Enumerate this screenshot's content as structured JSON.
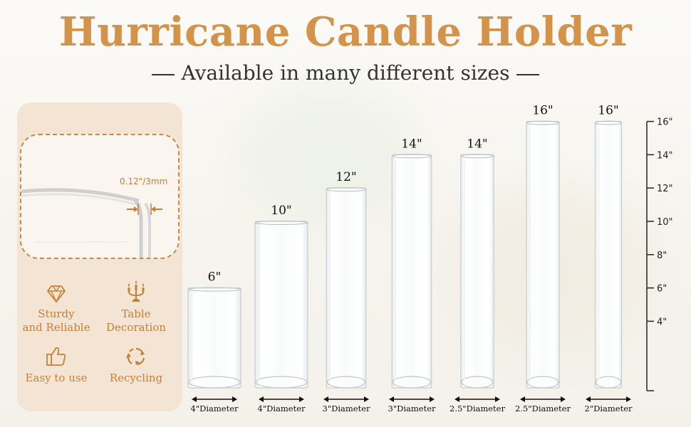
{
  "title": "Hurricane Candle Holder",
  "subtitle": "Available in many different sizes",
  "thickness": "0.12\"/3mm",
  "features": [
    {
      "label_1": "Sturdy",
      "label_2": "and Reliable",
      "icon": "diamond-icon"
    },
    {
      "label_1": "Table",
      "label_2": "Decoration",
      "icon": "candelabra-icon"
    },
    {
      "label_1": "Easy to use",
      "label_2": "",
      "icon": "thumbs-up-icon"
    },
    {
      "label_1": "Recycling",
      "label_2": "",
      "icon": "recycle-icon"
    }
  ],
  "products": [
    {
      "height": 6,
      "height_label": "6\"",
      "diameter": 4,
      "diameter_label": "4\"Diameter"
    },
    {
      "height": 10,
      "height_label": "10\"",
      "diameter": 4,
      "diameter_label": "4\"Diameter"
    },
    {
      "height": 12,
      "height_label": "12\"",
      "diameter": 3,
      "diameter_label": "3\"Diameter"
    },
    {
      "height": 14,
      "height_label": "14\"",
      "diameter": 3,
      "diameter_label": "3\"Diameter"
    },
    {
      "height": 14,
      "height_label": "14\"",
      "diameter": 2.5,
      "diameter_label": "2.5\"Diameter"
    },
    {
      "height": 16,
      "height_label": "16\"",
      "diameter": 2.5,
      "diameter_label": "2.5\"Diameter"
    },
    {
      "height": 16,
      "height_label": "16\"",
      "diameter": 2,
      "diameter_label": "2\"Diameter"
    }
  ],
  "scale": {
    "ticks": [
      {
        "value": 16,
        "label": "16\""
      },
      {
        "value": 14,
        "label": "14\""
      },
      {
        "value": 12,
        "label": "12\""
      },
      {
        "value": 10,
        "label": "10\""
      },
      {
        "value": 8,
        "label": "8\""
      },
      {
        "value": 6,
        "label": "6\""
      },
      {
        "value": 4,
        "label": "4\""
      }
    ]
  },
  "colors": {
    "accent": "#d4934a",
    "accent_dark": "#c77f36",
    "panel": "#f4e4d3"
  }
}
